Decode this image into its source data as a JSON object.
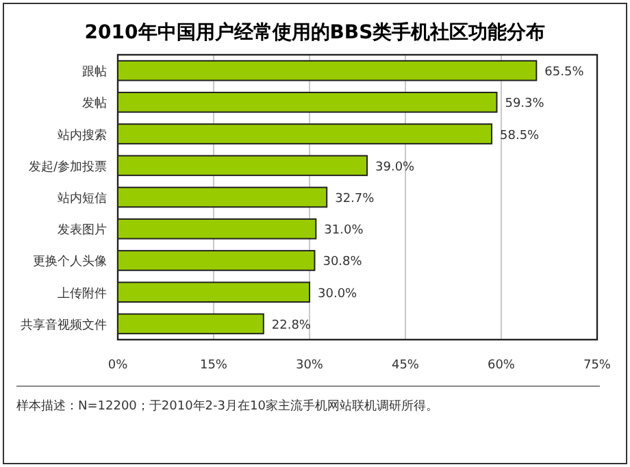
{
  "chart_data": {
    "type": "bar",
    "orientation": "horizontal",
    "title": "2010年中国用户经常使用的BBS类手机社区功能分布",
    "categories": [
      "跟帖",
      "发帖",
      "站内搜索",
      "发起/参加投票",
      "站内短信",
      "发表图片",
      "更换个人头像",
      "上传附件",
      "共享音视频文件"
    ],
    "values": [
      65.5,
      59.3,
      58.5,
      39.0,
      32.7,
      31.0,
      30.8,
      30.0,
      22.8
    ],
    "value_labels": [
      "65.5%",
      "59.3%",
      "58.5%",
      "39.0%",
      "32.7%",
      "31.0%",
      "30.8%",
      "30.0%",
      "22.8%"
    ],
    "color": "#99cc00",
    "xlim": [
      0,
      75
    ],
    "xticks": [
      {
        "value": 0,
        "label": "0%"
      },
      {
        "value": 15,
        "label": "15%"
      },
      {
        "value": 30,
        "label": "30%"
      },
      {
        "value": 45,
        "label": "45%"
      },
      {
        "value": 60,
        "label": "60%"
      },
      {
        "value": 75,
        "label": "75%"
      }
    ],
    "grid": "x",
    "annotations": [
      "样本描述：N=12200；于2010年2-3月在10家主流手机网站联机调研所得。"
    ]
  }
}
